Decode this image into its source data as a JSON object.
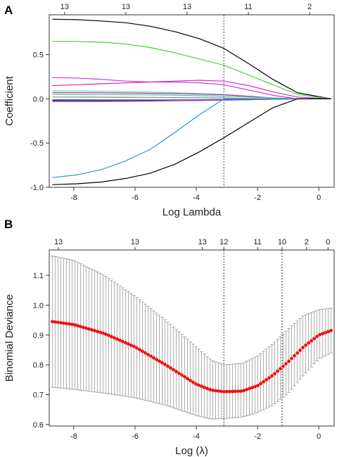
{
  "chart_data": [
    {
      "panel": "A",
      "type": "line",
      "xlabel": "Log Lambda",
      "ylabel": "Coefficient",
      "xlim": [
        -8.8,
        0.5
      ],
      "ylim": [
        -1.0,
        0.95
      ],
      "x_ticks": [
        -8,
        -6,
        -4,
        -2,
        0
      ],
      "x_tick_labels": [
        "-8",
        "-6",
        "-4",
        "-2",
        "0"
      ],
      "y_ticks": [
        -1.0,
        -0.5,
        0.0,
        0.5
      ],
      "y_tick_labels": [
        "-1.0",
        "-0.5",
        "0.0",
        "0.5"
      ],
      "top_labels": [
        {
          "x": -8.3,
          "label": "13"
        },
        {
          "x": -6.3,
          "label": "13"
        },
        {
          "x": -4.3,
          "label": "13"
        },
        {
          "x": -2.3,
          "label": "11"
        },
        {
          "x": -0.3,
          "label": "2"
        }
      ],
      "vline": -3.1,
      "x": [
        -8.7,
        -7.9,
        -7.1,
        -6.3,
        -5.5,
        -4.7,
        -3.9,
        -3.1,
        -2.3,
        -1.5,
        -0.7,
        0.4
      ],
      "series": [
        {
          "color": "#000000",
          "values": [
            0.9,
            0.895,
            0.88,
            0.86,
            0.82,
            0.76,
            0.68,
            0.57,
            0.4,
            0.22,
            0.07,
            0.0
          ]
        },
        {
          "color": "#55cc44",
          "values": [
            0.65,
            0.648,
            0.64,
            0.62,
            0.58,
            0.52,
            0.45,
            0.38,
            0.27,
            0.16,
            0.05,
            0.0
          ]
        },
        {
          "color": "#cc33cc",
          "values": [
            0.24,
            0.235,
            0.22,
            0.2,
            0.19,
            0.2,
            0.21,
            0.2,
            0.15,
            0.08,
            0.02,
            0.0
          ]
        },
        {
          "color": "#cc33cc",
          "values": [
            0.15,
            0.16,
            0.17,
            0.18,
            0.19,
            0.19,
            0.18,
            0.16,
            0.1,
            0.04,
            0.0,
            0.0
          ]
        },
        {
          "color": "#66cccc",
          "values": [
            0.09,
            0.088,
            0.085,
            0.08,
            0.075,
            0.07,
            0.06,
            0.05,
            0.03,
            0.01,
            0.0,
            0.0
          ]
        },
        {
          "color": "#bb3399",
          "values": [
            0.07,
            0.07,
            0.068,
            0.066,
            0.062,
            0.058,
            0.052,
            0.045,
            0.03,
            0.01,
            0.0,
            0.0
          ]
        },
        {
          "color": "#44cc99",
          "values": [
            0.05,
            0.05,
            0.049,
            0.047,
            0.044,
            0.04,
            0.035,
            0.03,
            0.02,
            0.01,
            0.0,
            0.0
          ]
        },
        {
          "color": "#888888",
          "values": [
            0.02,
            0.02,
            0.019,
            0.018,
            0.016,
            0.014,
            0.012,
            0.01,
            0.005,
            0.0,
            0.0,
            0.0
          ]
        },
        {
          "color": "#3366dd",
          "values": [
            -0.01,
            -0.01,
            -0.012,
            -0.012,
            -0.012,
            -0.011,
            -0.01,
            -0.008,
            -0.005,
            0.0,
            0.0,
            0.0
          ]
        },
        {
          "color": "#222288",
          "values": [
            -0.02,
            -0.021,
            -0.022,
            -0.022,
            -0.021,
            -0.02,
            -0.018,
            -0.015,
            -0.01,
            -0.004,
            0.0,
            0.0
          ]
        },
        {
          "color": "#aa44aa",
          "values": [
            -0.03,
            -0.03,
            -0.03,
            -0.028,
            -0.026,
            -0.022,
            -0.018,
            -0.014,
            -0.01,
            -0.004,
            0.0,
            0.0
          ]
        },
        {
          "color": "#2299dd",
          "values": [
            -0.89,
            -0.86,
            -0.8,
            -0.7,
            -0.57,
            -0.38,
            -0.18,
            0.0,
            0.0,
            0.0,
            0.0,
            0.0
          ]
        },
        {
          "color": "#000000",
          "values": [
            -0.97,
            -0.96,
            -0.94,
            -0.9,
            -0.84,
            -0.74,
            -0.6,
            -0.44,
            -0.27,
            -0.1,
            0.0,
            0.0
          ]
        }
      ]
    },
    {
      "panel": "B",
      "type": "scatter",
      "xlabel": "Log (λ)",
      "ylabel": "Binomial Deviance",
      "xlim": [
        -8.8,
        0.5
      ],
      "ylim": [
        0.595,
        1.185
      ],
      "x_ticks": [
        -8,
        -6,
        -4,
        -2,
        0
      ],
      "x_tick_labels": [
        "-8",
        "-6",
        "-4",
        "-2",
        "0"
      ],
      "y_ticks": [
        0.6,
        0.7,
        0.8,
        0.9,
        1.0,
        1.1
      ],
      "y_tick_labels": [
        "0.6",
        "0.7",
        "0.8",
        "0.9",
        "1.0",
        "1.1"
      ],
      "top_labels": [
        {
          "x": -8.5,
          "label": "13"
        },
        {
          "x": -6.0,
          "label": "13"
        },
        {
          "x": -3.8,
          "label": "13"
        },
        {
          "x": -3.1,
          "label": "12"
        },
        {
          "x": -2.0,
          "label": "11"
        },
        {
          "x": -1.2,
          "label": "10"
        },
        {
          "x": -0.4,
          "label": "2"
        },
        {
          "x": 0.3,
          "label": "0"
        }
      ],
      "vlines": [
        -3.1,
        -1.2
      ],
      "point_color": "#ee1111",
      "errorbar_color": "#999999",
      "curve": {
        "x": [
          -8.7,
          -8.0,
          -7.0,
          -6.0,
          -5.0,
          -4.0,
          -3.5,
          -3.1,
          -2.5,
          -2.0,
          -1.5,
          -1.0,
          -0.5,
          0.0,
          0.4
        ],
        "mean": [
          0.945,
          0.935,
          0.905,
          0.86,
          0.8,
          0.735,
          0.715,
          0.71,
          0.712,
          0.73,
          0.765,
          0.81,
          0.86,
          0.9,
          0.915
        ],
        "upper": [
          1.165,
          1.15,
          1.1,
          1.03,
          0.95,
          0.86,
          0.815,
          0.8,
          0.805,
          0.83,
          0.87,
          0.92,
          0.965,
          0.985,
          0.99
        ],
        "lower": [
          0.725,
          0.718,
          0.705,
          0.69,
          0.665,
          0.63,
          0.618,
          0.62,
          0.625,
          0.64,
          0.665,
          0.705,
          0.765,
          0.82,
          0.84
        ]
      }
    }
  ]
}
